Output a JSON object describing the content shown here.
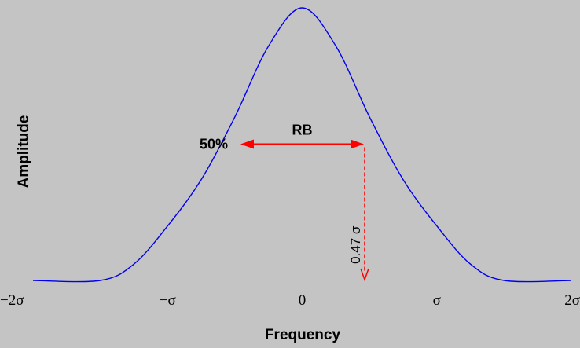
{
  "chart_data": {
    "type": "line",
    "title": "",
    "xlabel": "Frequency",
    "ylabel": "Amplitude",
    "xlim": [
      -2,
      2
    ],
    "ylim": [
      0,
      1
    ],
    "x_unit": "σ",
    "xticks": [
      {
        "value": -2,
        "label": "−2σ"
      },
      {
        "value": -1,
        "label": "−σ"
      },
      {
        "value": 0,
        "label": "0"
      },
      {
        "value": 1,
        "label": "σ"
      },
      {
        "value": 2,
        "label": "2σ"
      }
    ],
    "grid": false,
    "series": [
      {
        "color": "#0000ee",
        "x": [
          -2,
          -1.5,
          -1.25,
          -1,
          -0.75,
          -0.5,
          -0.25,
          0,
          0.25,
          0.5,
          0.75,
          1,
          1.25,
          1.5,
          2
        ],
        "y": [
          0,
          0,
          0.06,
          0.2,
          0.37,
          0.6,
          0.86,
          1,
          0.86,
          0.6,
          0.37,
          0.2,
          0.06,
          0,
          0
        ]
      }
    ],
    "annotations": {
      "half_level": {
        "label": "50%",
        "y": 0.5
      },
      "bandwidth": {
        "label": "RB",
        "x_from": -0.47,
        "x_to": 0.47,
        "y": 0.5,
        "color": "#ff0000"
      },
      "half_width": {
        "label": "0.47 σ",
        "x": 0.47,
        "y_from": 0.5,
        "y_to": 0,
        "color": "#ff0000"
      }
    }
  }
}
